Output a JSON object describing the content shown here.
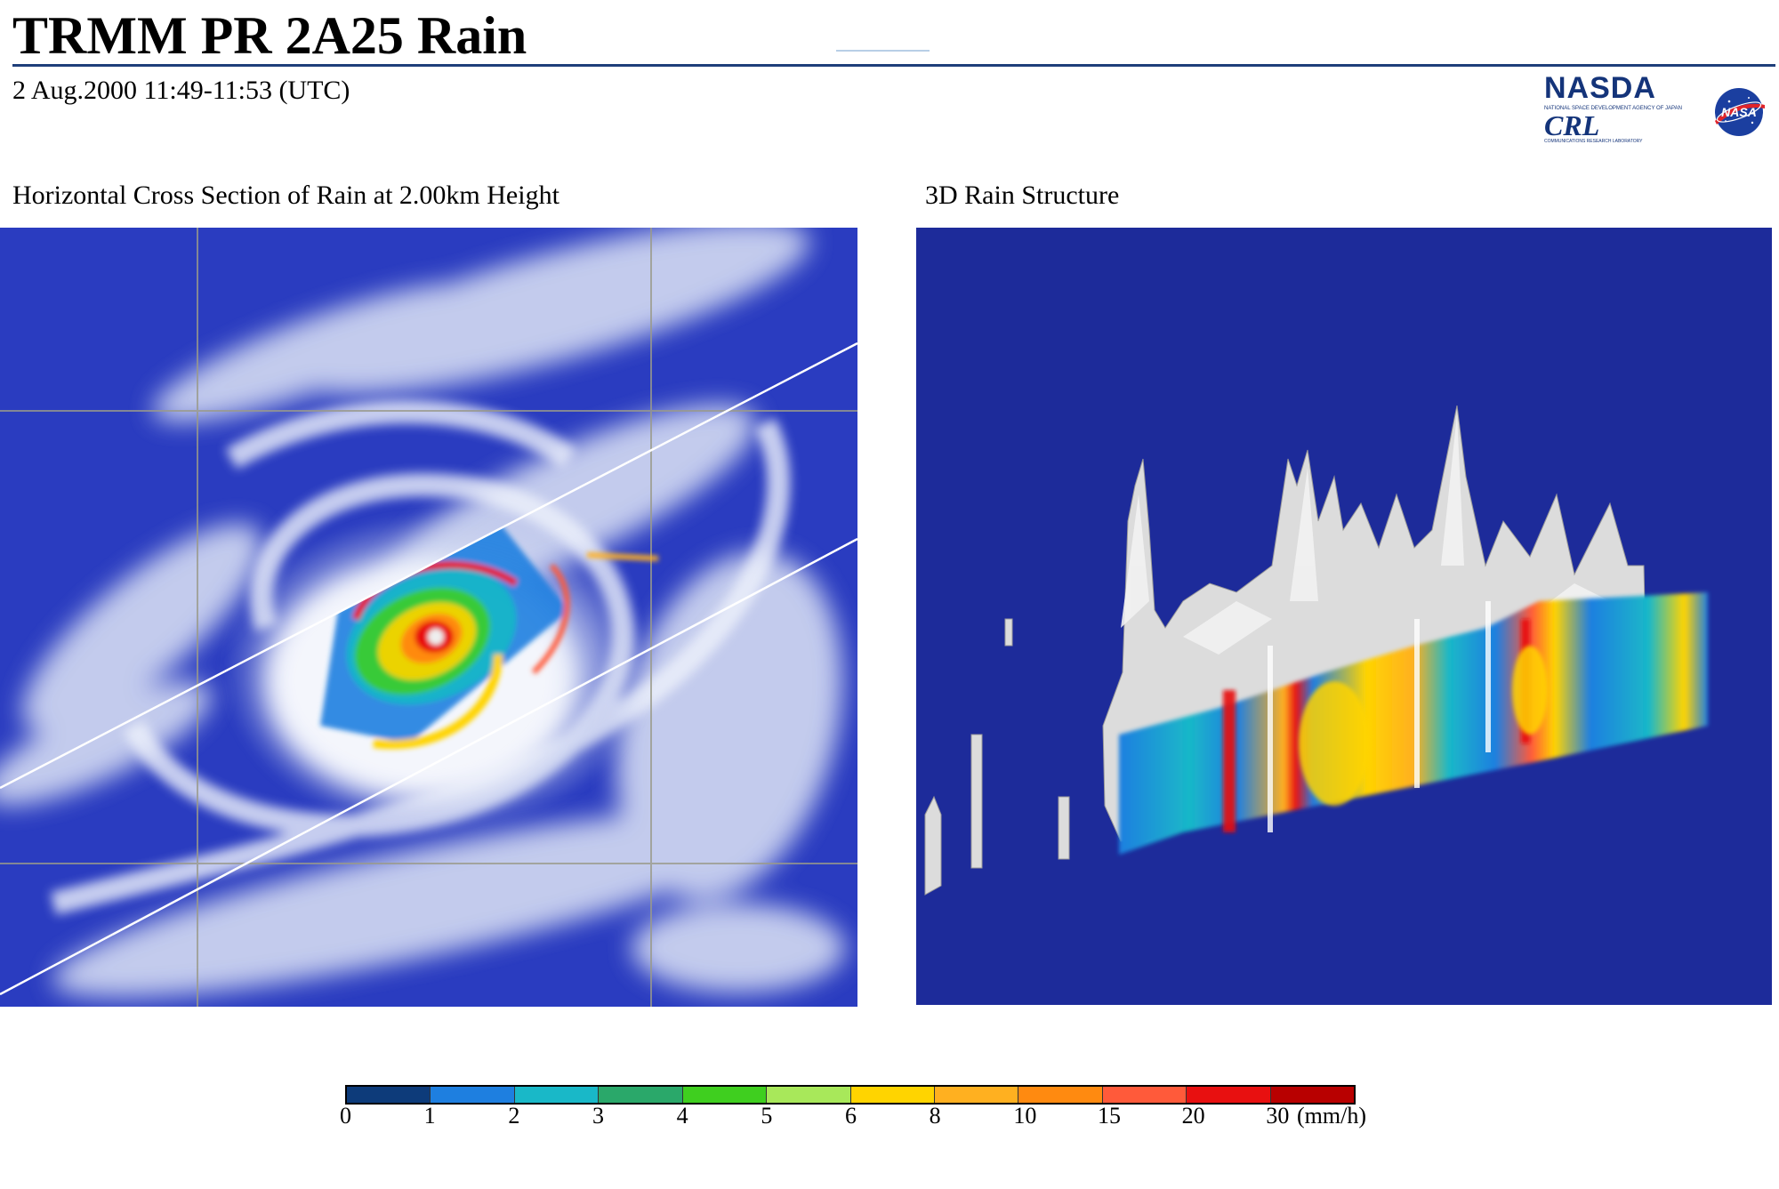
{
  "header": {
    "title": "TRMM PR 2A25 Rain",
    "subtitle": "2 Aug.2000 11:49-11:53 (UTC)"
  },
  "logos": {
    "nasda_word": "NASDA",
    "nasda_subtext": "NATIONAL SPACE DEVELOPMENT AGENCY OF JAPAN",
    "crl_word": "CRL",
    "crl_subtext": "COMMUNICATIONS RESEARCH LABORATORY",
    "nasa_word": "NASA"
  },
  "panels": {
    "left_label": "Horizontal Cross Section of Rain at 2.00km Height",
    "right_label": "3D Rain Structure"
  },
  "colorbar": {
    "tick_labels": [
      "0",
      "1",
      "2",
      "3",
      "4",
      "5",
      "6",
      "8",
      "10",
      "15",
      "20",
      "30"
    ],
    "unit": "(mm/h)",
    "colors": [
      "#0d3b7a",
      "#1e7fe0",
      "#19b8c8",
      "#2aa86a",
      "#3fcf1f",
      "#a8e85a",
      "#ffd400",
      "#ffb020",
      "#ff8a10",
      "#ff5a3a",
      "#e81010",
      "#b80000"
    ]
  }
}
